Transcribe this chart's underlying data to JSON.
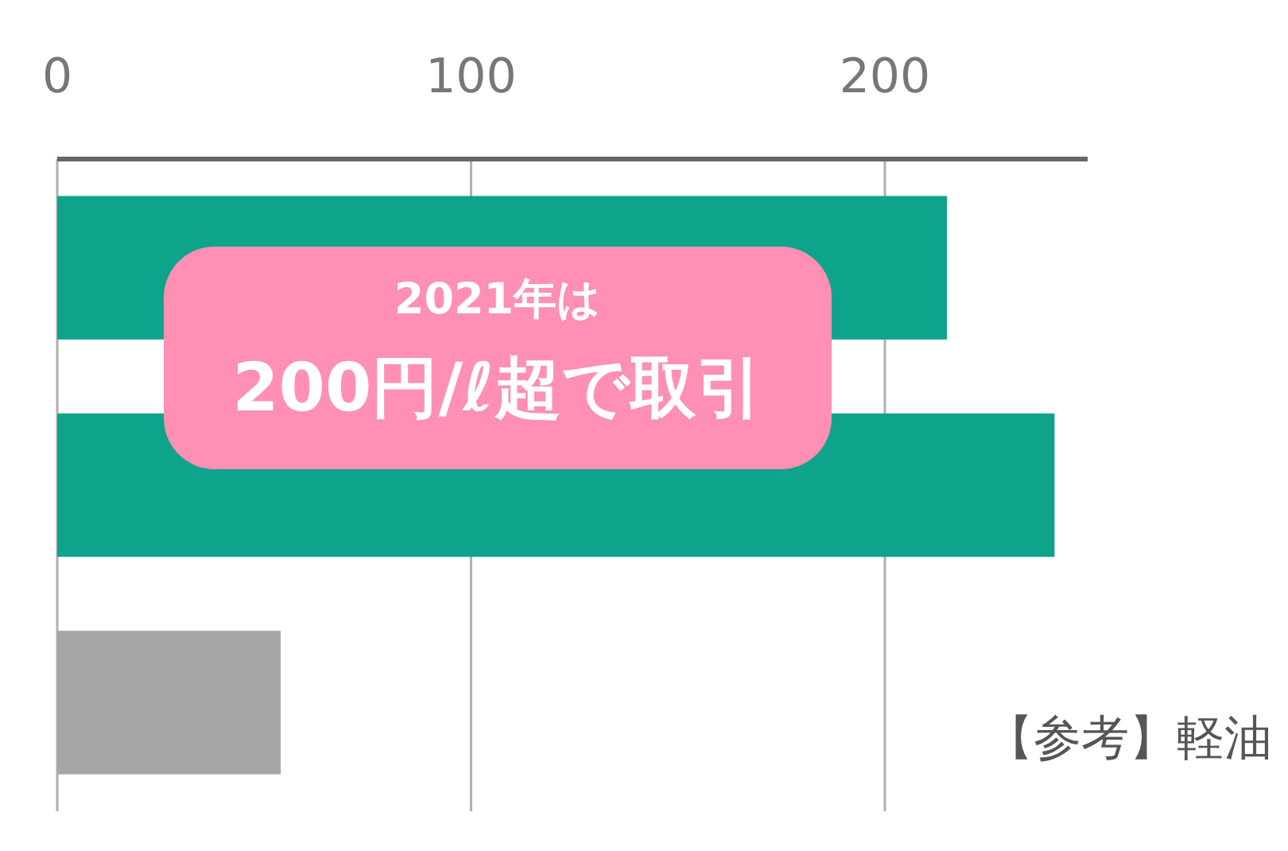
{
  "chart_data": {
    "type": "bar",
    "orientation": "horizontal",
    "categories": [
      null,
      null,
      null
    ],
    "values": [
      215,
      241,
      54
    ],
    "colors": [
      "#0ea38b",
      "#0ea38b",
      "#a6a6a6"
    ],
    "xlim": [
      0,
      249
    ],
    "xticks": [
      0,
      100,
      200
    ],
    "grid": "x",
    "tick_labels": "x",
    "annotations": [
      "2021年は\n200円/ℓ超で取引",
      "【参考】軽油"
    ]
  }
}
